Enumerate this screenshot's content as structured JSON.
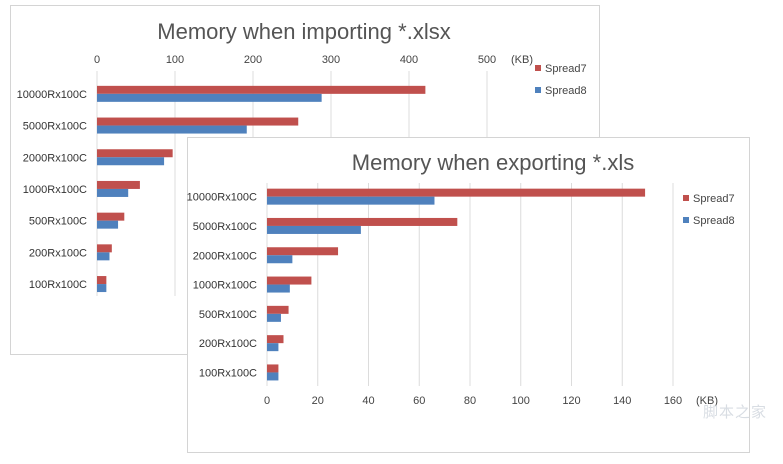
{
  "chart_data": [
    {
      "type": "bar",
      "orientation": "horizontal",
      "title": "Memory when importing *.xlsx",
      "unit": "(KB)",
      "categories": [
        "10000Rx100C",
        "5000Rx100C",
        "2000Rx100C",
        "1000Rx100C",
        "500Rx100C",
        "200Rx100C",
        "100Rx100C"
      ],
      "series": [
        {
          "name": "Spread7",
          "color": "#c0504d",
          "values": [
            421,
            258,
            97,
            55,
            35,
            19,
            12
          ]
        },
        {
          "name": "Spread8",
          "color": "#4f81bd",
          "values": [
            288,
            192,
            86,
            40,
            27,
            16,
            12
          ]
        }
      ],
      "xlim": [
        0,
        500
      ],
      "xticks": [
        "0",
        "100",
        "200",
        "300",
        "400",
        "500"
      ],
      "axis_position": "top",
      "grid": true,
      "legend": "right"
    },
    {
      "type": "bar",
      "orientation": "horizontal",
      "title": "Memory when exporting *.xls",
      "unit": "(KB)",
      "categories": [
        "10000Rx100C",
        "5000Rx100C",
        "2000Rx100C",
        "1000Rx100C",
        "500Rx100C",
        "200Rx100C",
        "100Rx100C"
      ],
      "series": [
        {
          "name": "Spread7",
          "color": "#c0504d",
          "values": [
            149,
            75,
            28,
            17.5,
            8.5,
            6.5,
            4.5
          ]
        },
        {
          "name": "Spread8",
          "color": "#4f81bd",
          "values": [
            66,
            37,
            10,
            9,
            5.5,
            4.5,
            4.5
          ]
        }
      ],
      "xlim": [
        0,
        160
      ],
      "xticks": [
        "0",
        "20",
        "40",
        "60",
        "80",
        "100",
        "120",
        "140",
        "160"
      ],
      "axis_position": "bottom",
      "grid": true,
      "legend": "right"
    }
  ],
  "watermark": "脚本之家"
}
